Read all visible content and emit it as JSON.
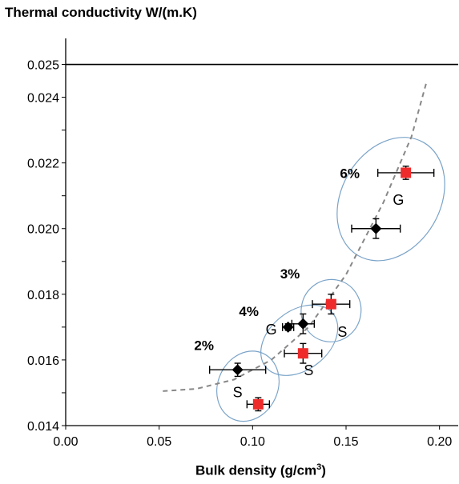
{
  "chart_data": {
    "type": "scatter",
    "ylabel": "Thermal conductivity W/(m.K)",
    "xlabel_main": "Bulk density (g/cm",
    "xlabel_sup": "3",
    "xlabel_end": ")",
    "xlim": [
      0,
      0.21
    ],
    "ylim": [
      0.014,
      0.0255
    ],
    "x_ticks": [
      "0.00",
      "0.05",
      "0.10",
      "0.15",
      "0.20"
    ],
    "y_ticks": [
      "0.014",
      "0.016",
      "0.018",
      "0.020",
      "0.022",
      "0.024",
      "0.025"
    ],
    "y_tick_values": [
      0.014,
      0.016,
      0.018,
      0.02,
      0.022,
      0.024,
      0.025
    ],
    "x_tick_values": [
      0,
      0.05,
      0.1,
      0.15,
      0.2
    ],
    "reference_line_y": 0.025,
    "series": [
      {
        "marker": "diamond",
        "color": "#000000",
        "points": [
          {
            "x": 0.092,
            "y": 0.0157,
            "xerr": 0.015,
            "yerr": 0.0002
          },
          {
            "x": 0.119,
            "y": 0.017,
            "xerr": 0.003,
            "yerr": 0.0001
          },
          {
            "x": 0.127,
            "y": 0.0171,
            "xerr": 0.006,
            "yerr": 0.0003
          },
          {
            "x": 0.166,
            "y": 0.02,
            "xerr": 0.013,
            "yerr": 0.0003
          }
        ]
      },
      {
        "marker": "square",
        "color": "#ee2a2a",
        "points": [
          {
            "x": 0.103,
            "y": 0.01465,
            "xerr": 0.006,
            "yerr": 0.0002
          },
          {
            "x": 0.127,
            "y": 0.0162,
            "xerr": 0.01,
            "yerr": 0.0003
          },
          {
            "x": 0.142,
            "y": 0.0177,
            "xerr": 0.01,
            "yerr": 0.0003
          },
          {
            "x": 0.182,
            "y": 0.0217,
            "xerr": 0.015,
            "yerr": 0.0002
          }
        ]
      }
    ],
    "trendline": {
      "style": "dashed",
      "color": "#888888",
      "points": [
        [
          0.052,
          0.01505
        ],
        [
          0.07,
          0.01512
        ],
        [
          0.09,
          0.0154
        ],
        [
          0.11,
          0.016
        ],
        [
          0.13,
          0.017
        ],
        [
          0.15,
          0.0186
        ],
        [
          0.17,
          0.0208
        ],
        [
          0.185,
          0.0228
        ],
        [
          0.193,
          0.02445
        ]
      ]
    },
    "groups": [
      {
        "cx": 0.0975,
        "cy": 0.0152,
        "rx": 0.016,
        "ry": 0.0011,
        "angle": 25
      },
      {
        "cx": 0.125,
        "cy": 0.0166,
        "rx": 0.023,
        "ry": 0.0009,
        "angle": -38
      },
      {
        "cx": 0.142,
        "cy": 0.0175,
        "rx": 0.016,
        "ry": 0.00095,
        "angle": 10
      },
      {
        "cx": 0.174,
        "cy": 0.0209,
        "rx": 0.035,
        "ry": 0.0015,
        "angle": -60
      }
    ],
    "annotations": [
      {
        "text": "2%",
        "x": 0.074,
        "y": 0.0163,
        "bold": true
      },
      {
        "text": "S",
        "x": 0.092,
        "y": 0.01487,
        "bold": false
      },
      {
        "text": "4%",
        "x": 0.098,
        "y": 0.01734,
        "bold": true
      },
      {
        "text": "G",
        "x": 0.11,
        "y": 0.01678,
        "bold": false
      },
      {
        "text": "S",
        "x": 0.13,
        "y": 0.01554,
        "bold": false
      },
      {
        "text": "3%",
        "x": 0.12,
        "y": 0.01848,
        "bold": true
      },
      {
        "text": "S",
        "x": 0.148,
        "y": 0.0167,
        "bold": false
      },
      {
        "text": "6%",
        "x": 0.152,
        "y": 0.02154,
        "bold": true
      },
      {
        "text": "G",
        "x": 0.178,
        "y": 0.02073,
        "bold": false
      }
    ]
  }
}
